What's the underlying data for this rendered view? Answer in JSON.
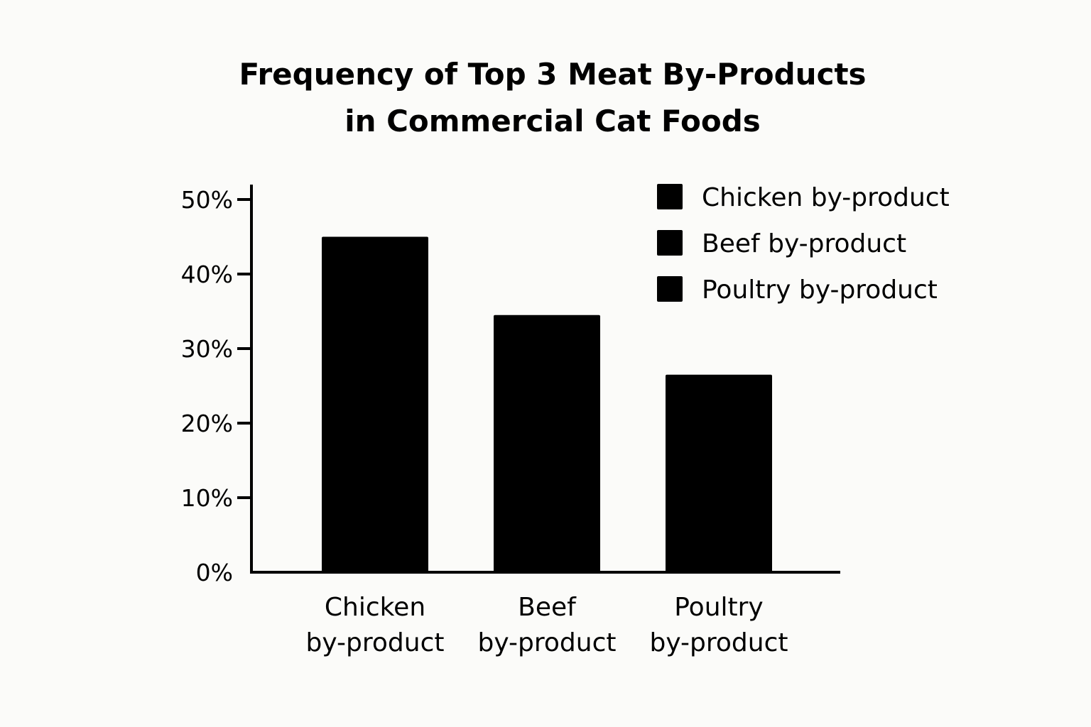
{
  "chart_data": {
    "type": "bar",
    "title_lines": [
      "Frequency of Top 3 Meat By-Products",
      "in Commercial Cat Foods"
    ],
    "xlabel": "",
    "ylabel": "",
    "categories": [
      [
        "Chicken",
        "by-product"
      ],
      [
        "Beef",
        "by-product"
      ],
      [
        "Poultry",
        "by-product"
      ]
    ],
    "values": [
      45,
      34.5,
      26.5
    ],
    "ylim": [
      0,
      50
    ],
    "yticks": [
      0,
      10,
      20,
      30,
      40,
      50
    ],
    "ytick_labels": [
      "0%",
      "10%",
      "20%",
      "30%",
      "40%",
      "50%"
    ],
    "bar_color": "#000000",
    "grid": false,
    "legend": {
      "position": "top-right",
      "entries": [
        "Chicken by-product",
        "Beef by-product",
        "Poultry by-product"
      ],
      "colors": [
        "#000000",
        "#000000",
        "#000000"
      ]
    }
  }
}
